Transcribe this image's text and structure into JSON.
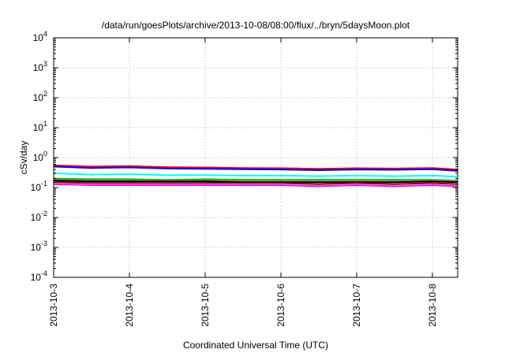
{
  "chart_data": {
    "type": "line",
    "title": "/data/run/goesPlots/archive/2013-10-08/08:00/flux/../bryn/5daysMoon.plot",
    "xlabel": "Coordinated Universal Time (UTC)",
    "ylabel": "cSv/day",
    "yscale": "log",
    "ylim": [
      0.0001,
      10000
    ],
    "xlim": [
      "2013-10-03",
      "2013-10-08 08:00"
    ],
    "grid": true,
    "legend": "none",
    "x_ticks": [
      "2013-10-3",
      "2013-10-4",
      "2013-10-5",
      "2013-10-6",
      "2013-10-7",
      "2013-10-8"
    ],
    "y_ticks": [
      {
        "base": "10",
        "exp": "-4"
      },
      {
        "base": "10",
        "exp": "-3"
      },
      {
        "base": "10",
        "exp": "-2"
      },
      {
        "base": "10",
        "exp": "-1"
      },
      {
        "base": "10",
        "exp": "0"
      },
      {
        "base": "10",
        "exp": "1"
      },
      {
        "base": "10",
        "exp": "2"
      },
      {
        "base": "10",
        "exp": "3"
      },
      {
        "base": "10",
        "exp": "4"
      }
    ],
    "x": [
      "2013-10-03",
      "2013-10-03 12:00",
      "2013-10-04",
      "2013-10-04 12:00",
      "2013-10-05",
      "2013-10-05 12:00",
      "2013-10-06",
      "2013-10-06 12:00",
      "2013-10-07",
      "2013-10-07 12:00",
      "2013-10-08",
      "2013-10-08 08:00"
    ],
    "series": [
      {
        "color": "#ff0000",
        "values": [
          0.55,
          0.5,
          0.52,
          0.48,
          0.47,
          0.45,
          0.44,
          0.42,
          0.44,
          0.43,
          0.45,
          0.4
        ]
      },
      {
        "color": "#0000ff",
        "values": [
          0.5,
          0.45,
          0.47,
          0.43,
          0.42,
          0.41,
          0.4,
          0.38,
          0.4,
          0.39,
          0.41,
          0.36
        ]
      },
      {
        "color": "#00ffff",
        "values": [
          0.3,
          0.27,
          0.28,
          0.26,
          0.26,
          0.25,
          0.25,
          0.24,
          0.25,
          0.24,
          0.25,
          0.23
        ]
      },
      {
        "color": "#00c000",
        "values": [
          0.2,
          0.19,
          0.19,
          0.18,
          0.19,
          0.18,
          0.18,
          0.18,
          0.18,
          0.18,
          0.18,
          0.17
        ]
      },
      {
        "color": "#808080",
        "values": [
          0.18,
          0.17,
          0.17,
          0.17,
          0.17,
          0.16,
          0.16,
          0.16,
          0.16,
          0.16,
          0.17,
          0.16
        ]
      },
      {
        "color": "#000000",
        "values": [
          0.17,
          0.16,
          0.16,
          0.16,
          0.16,
          0.15,
          0.15,
          0.15,
          0.15,
          0.15,
          0.16,
          0.15
        ]
      },
      {
        "color": "#8b0000",
        "values": [
          0.15,
          0.14,
          0.14,
          0.14,
          0.14,
          0.14,
          0.14,
          0.13,
          0.14,
          0.13,
          0.14,
          0.13
        ]
      },
      {
        "color": "#ff00ff",
        "values": [
          0.13,
          0.12,
          0.12,
          0.12,
          0.12,
          0.12,
          0.12,
          0.11,
          0.12,
          0.11,
          0.12,
          0.11
        ]
      }
    ]
  }
}
